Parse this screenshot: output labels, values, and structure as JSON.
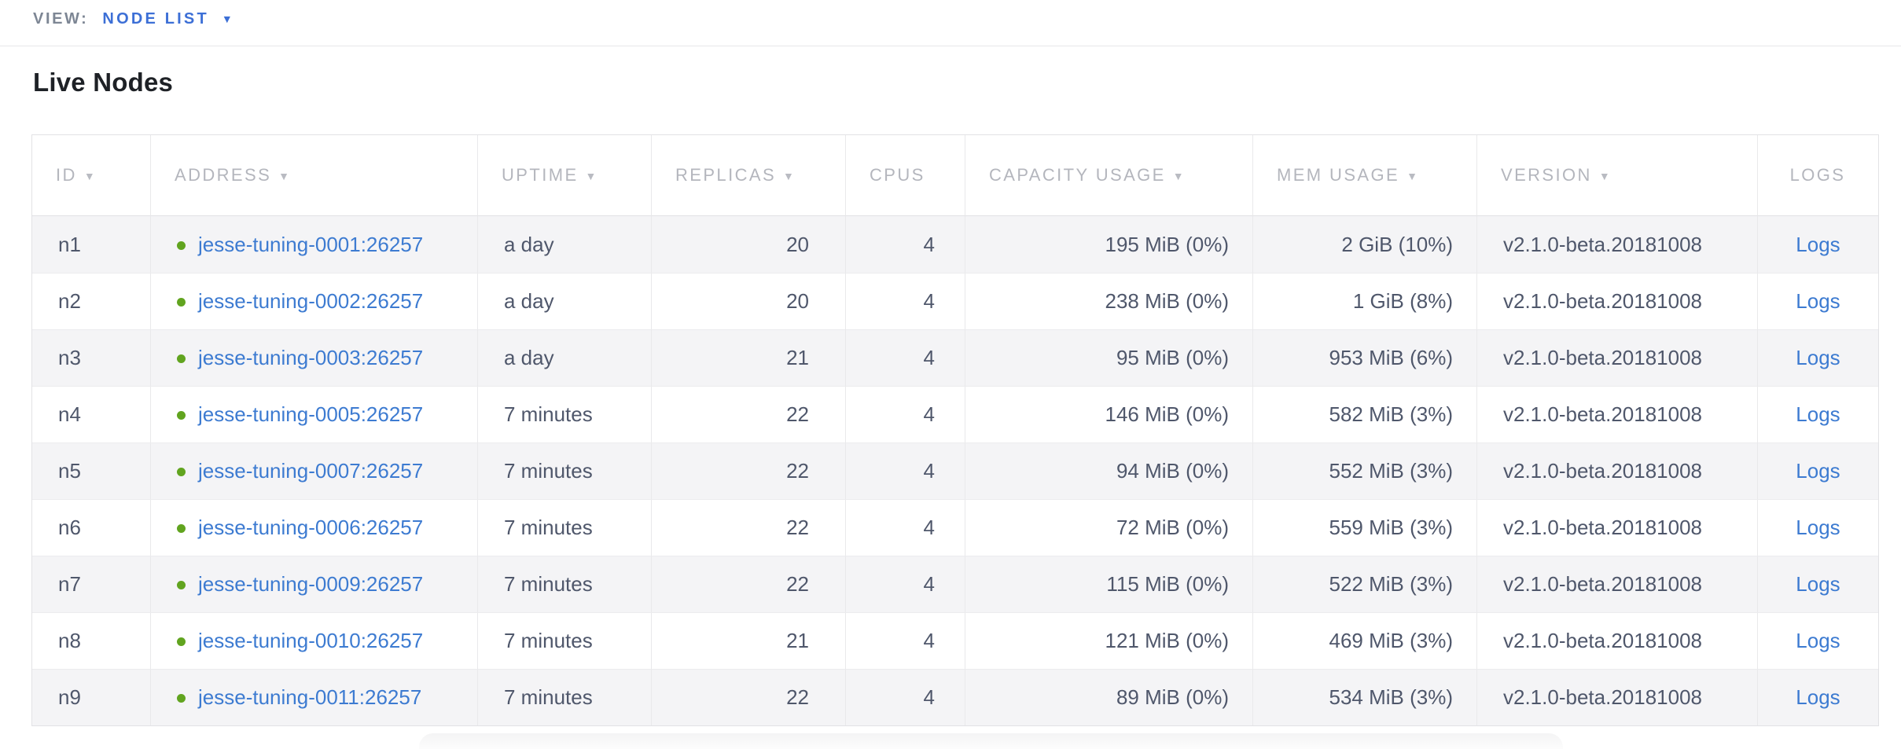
{
  "view_bar": {
    "label": "VIEW:",
    "selected": "NODE LIST",
    "dropdown_icon": "caret-down-icon"
  },
  "page": {
    "title": "Live Nodes"
  },
  "table": {
    "columns": [
      {
        "key": "id",
        "label": "ID",
        "sortable": true
      },
      {
        "key": "address",
        "label": "ADDRESS",
        "sortable": true
      },
      {
        "key": "uptime",
        "label": "UPTIME",
        "sortable": true
      },
      {
        "key": "replicas",
        "label": "REPLICAS",
        "sortable": true
      },
      {
        "key": "cpus",
        "label": "CPUS",
        "sortable": false
      },
      {
        "key": "capacity",
        "label": "CAPACITY USAGE",
        "sortable": true
      },
      {
        "key": "mem",
        "label": "MEM USAGE",
        "sortable": true
      },
      {
        "key": "version",
        "label": "VERSION",
        "sortable": true
      },
      {
        "key": "logs",
        "label": "LOGS",
        "sortable": false
      }
    ],
    "rows": [
      {
        "id": "n1",
        "status": "live",
        "address": "jesse-tuning-0001:26257",
        "uptime": "a day",
        "replicas": "20",
        "cpus": "4",
        "capacity": "195 MiB (0%)",
        "mem": "2 GiB (10%)",
        "version": "v2.1.0-beta.20181008",
        "logs": "Logs"
      },
      {
        "id": "n2",
        "status": "live",
        "address": "jesse-tuning-0002:26257",
        "uptime": "a day",
        "replicas": "20",
        "cpus": "4",
        "capacity": "238 MiB (0%)",
        "mem": "1 GiB (8%)",
        "version": "v2.1.0-beta.20181008",
        "logs": "Logs"
      },
      {
        "id": "n3",
        "status": "live",
        "address": "jesse-tuning-0003:26257",
        "uptime": "a day",
        "replicas": "21",
        "cpus": "4",
        "capacity": "95 MiB (0%)",
        "mem": "953 MiB (6%)",
        "version": "v2.1.0-beta.20181008",
        "logs": "Logs"
      },
      {
        "id": "n4",
        "status": "live",
        "address": "jesse-tuning-0005:26257",
        "uptime": "7 minutes",
        "replicas": "22",
        "cpus": "4",
        "capacity": "146 MiB (0%)",
        "mem": "582 MiB (3%)",
        "version": "v2.1.0-beta.20181008",
        "logs": "Logs"
      },
      {
        "id": "n5",
        "status": "live",
        "address": "jesse-tuning-0007:26257",
        "uptime": "7 minutes",
        "replicas": "22",
        "cpus": "4",
        "capacity": "94 MiB (0%)",
        "mem": "552 MiB (3%)",
        "version": "v2.1.0-beta.20181008",
        "logs": "Logs"
      },
      {
        "id": "n6",
        "status": "live",
        "address": "jesse-tuning-0006:26257",
        "uptime": "7 minutes",
        "replicas": "22",
        "cpus": "4",
        "capacity": "72 MiB (0%)",
        "mem": "559 MiB (3%)",
        "version": "v2.1.0-beta.20181008",
        "logs": "Logs"
      },
      {
        "id": "n7",
        "status": "live",
        "address": "jesse-tuning-0009:26257",
        "uptime": "7 minutes",
        "replicas": "22",
        "cpus": "4",
        "capacity": "115 MiB (0%)",
        "mem": "522 MiB (3%)",
        "version": "v2.1.0-beta.20181008",
        "logs": "Logs"
      },
      {
        "id": "n8",
        "status": "live",
        "address": "jesse-tuning-0010:26257",
        "uptime": "7 minutes",
        "replicas": "21",
        "cpus": "4",
        "capacity": "121 MiB (0%)",
        "mem": "469 MiB (3%)",
        "version": "v2.1.0-beta.20181008",
        "logs": "Logs"
      },
      {
        "id": "n9",
        "status": "live",
        "address": "jesse-tuning-0011:26257",
        "uptime": "7 minutes",
        "replicas": "22",
        "cpus": "4",
        "capacity": "89 MiB (0%)",
        "mem": "534 MiB (3%)",
        "version": "v2.1.0-beta.20181008",
        "logs": "Logs"
      }
    ]
  },
  "colors": {
    "selector_blue": "#3c6fd6",
    "link_blue": "#3d7bd1",
    "live_dot_green": "#61a41f",
    "header_text_gray": "#b4b6bd",
    "cell_text": "#4f576b",
    "alt_row_bg": "#f4f4f6"
  }
}
